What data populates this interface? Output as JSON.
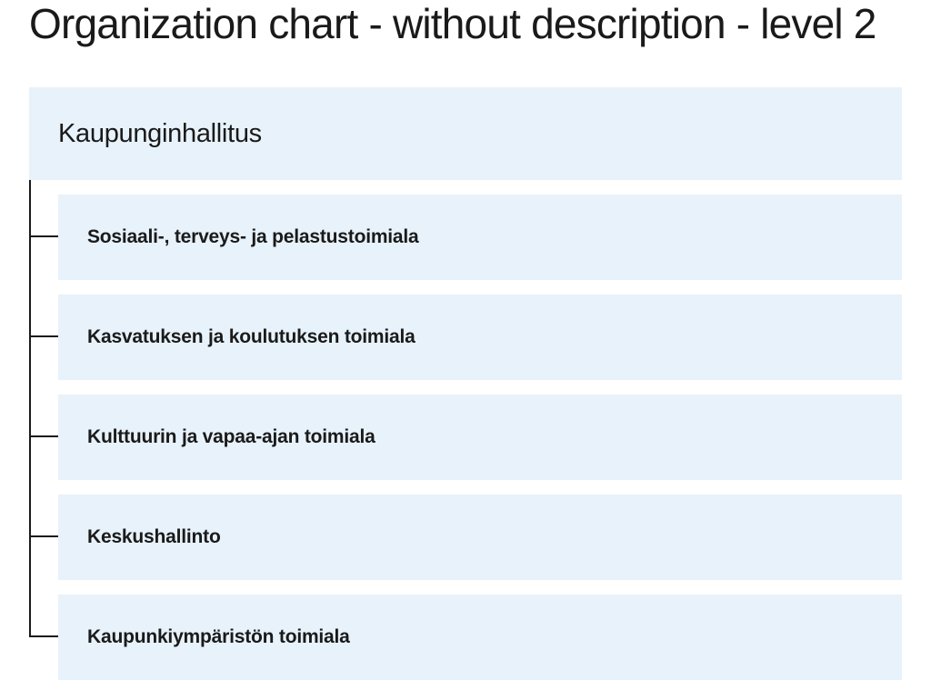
{
  "page": {
    "title": "Organization chart - without description - level 2"
  },
  "org_chart": {
    "root": {
      "label": "Kaupunginhallitus"
    },
    "children": [
      {
        "label": "Sosiaali-, terveys- ja pelastustoimiala"
      },
      {
        "label": "Kasvatuksen ja koulutuksen toimiala"
      },
      {
        "label": "Kulttuurin ja vapaa-ajan toimiala"
      },
      {
        "label": "Keskushallinto"
      },
      {
        "label": "Kaupunkiympäristön toimiala"
      }
    ]
  },
  "colors": {
    "card_background": "#e8f2fb",
    "text": "#1a1a1a",
    "connector": "#1a1a1a"
  }
}
